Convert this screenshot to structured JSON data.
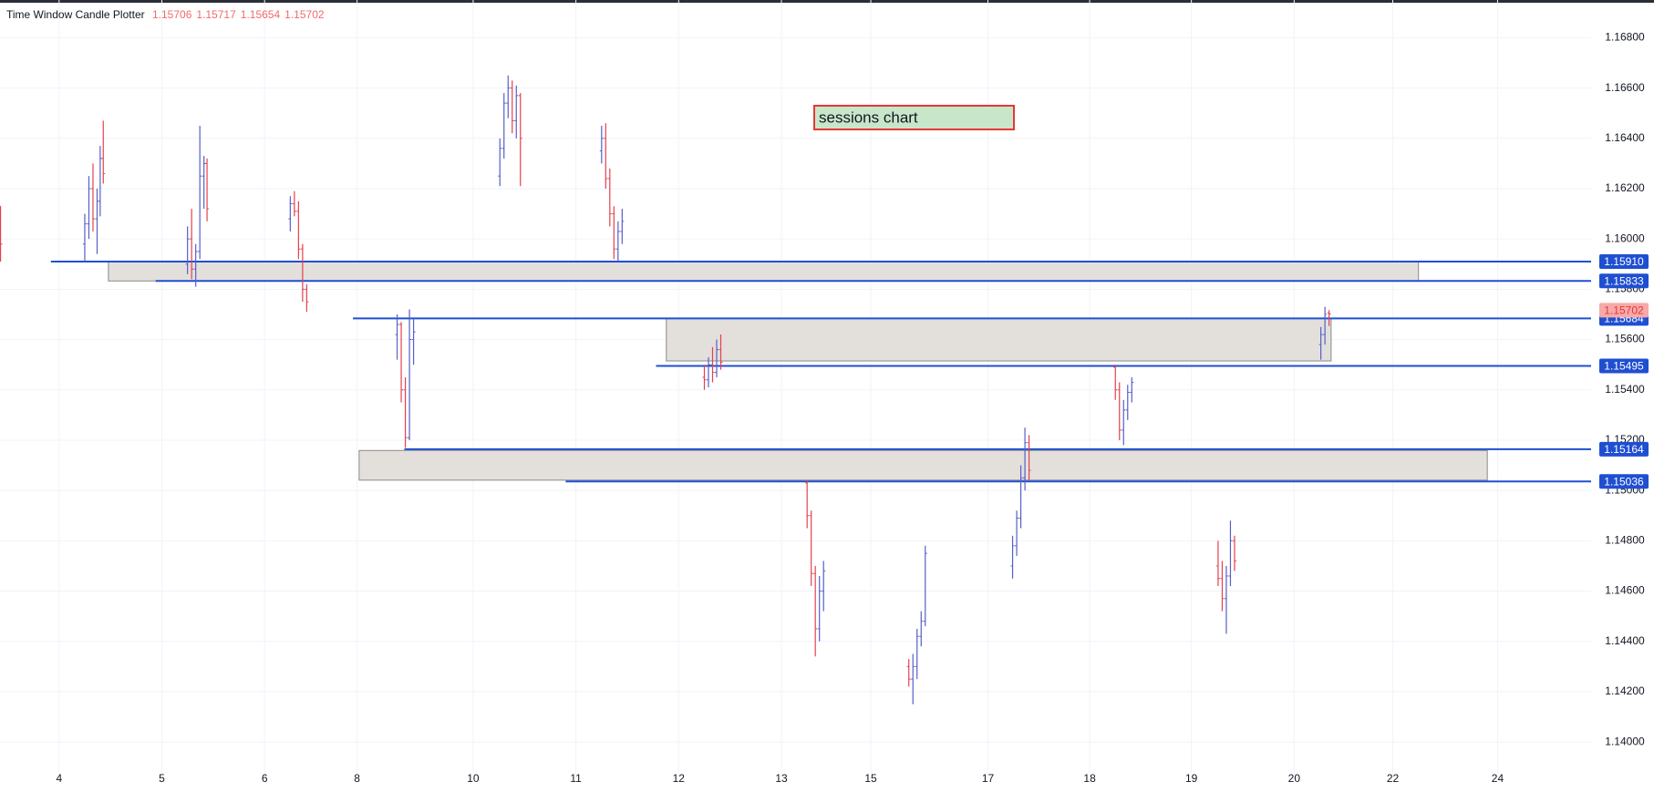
{
  "chart_data": {
    "type": "candlestick",
    "title": "Time Window Candle Plotter",
    "annotation": "sessions chart",
    "up_color": "#5560c8",
    "down_color": "#e4414d",
    "level_color": "#1f4fd1",
    "box_color": "#e3e0dc",
    "grid": true,
    "xlim": [
      -0.575,
      14.91
    ],
    "xticks": [
      {
        "value": 0,
        "label": "4"
      },
      {
        "value": 1,
        "label": "5"
      },
      {
        "value": 2,
        "label": "6"
      },
      {
        "value": 2.9,
        "label": "8"
      },
      {
        "value": 4.03,
        "label": "10"
      },
      {
        "value": 5.03,
        "label": "11"
      },
      {
        "value": 6.03,
        "label": "12"
      },
      {
        "value": 7.03,
        "label": "13"
      },
      {
        "value": 7.9,
        "label": "15"
      },
      {
        "value": 9.04,
        "label": "17"
      },
      {
        "value": 10.03,
        "label": "18"
      },
      {
        "value": 11.02,
        "label": "19"
      },
      {
        "value": 12.02,
        "label": "20"
      },
      {
        "value": 12.98,
        "label": "22"
      },
      {
        "value": 14,
        "label": "24"
      }
    ],
    "ylim": [
      1.1387,
      1.1695
    ],
    "yticks": [
      {
        "value": 1.168,
        "label": "1.16800"
      },
      {
        "value": 1.166,
        "label": "1.16600"
      },
      {
        "value": 1.164,
        "label": "1.16400"
      },
      {
        "value": 1.162,
        "label": "1.16200"
      },
      {
        "value": 1.16,
        "label": "1.16000"
      },
      {
        "value": 1.158,
        "label": "1.15800"
      },
      {
        "value": 1.156,
        "label": "1.15600"
      },
      {
        "value": 1.154,
        "label": "1.15400"
      },
      {
        "value": 1.152,
        "label": "1.15200"
      },
      {
        "value": 1.15,
        "label": "1.15000"
      },
      {
        "value": 1.148,
        "label": "1.14800"
      },
      {
        "value": 1.146,
        "label": "1.14600"
      },
      {
        "value": 1.144,
        "label": "1.14400"
      },
      {
        "value": 1.142,
        "label": "1.14200"
      },
      {
        "value": 1.14,
        "label": "1.14000"
      }
    ],
    "boxes": [
      {
        "x0": 0.48,
        "x1": 13.23,
        "top": 1.1591,
        "bottom": 1.15833
      },
      {
        "x0": 5.91,
        "x1": 12.38,
        "top": 1.15684,
        "bottom": 1.15515
      },
      {
        "x0": 2.92,
        "x1": 13.9,
        "top": 1.15159,
        "bottom": 1.15041
      }
    ],
    "levels": [
      {
        "value": 1.1591,
        "label": "1.15910",
        "from": -0.08
      },
      {
        "value": 1.15833,
        "label": "1.15833",
        "from": 0.94
      },
      {
        "value": 1.15684,
        "label": "1.15684",
        "from": 2.86
      },
      {
        "value": 1.15495,
        "label": "1.15495",
        "from": 5.81
      },
      {
        "value": 1.15164,
        "label": "1.15164",
        "from": 3.36
      },
      {
        "value": 1.15036,
        "label": "1.15036",
        "from": 4.93
      }
    ],
    "candles": [
      [
        -0.57,
        1.1613,
        1.1613,
        1.1591,
        1.1598
      ],
      [
        0.25,
        1.1598,
        1.161,
        1.1591,
        1.1606
      ],
      [
        0.29,
        1.1606,
        1.1625,
        1.16,
        1.162
      ],
      [
        0.33,
        1.162,
        1.163,
        1.1603,
        1.1608
      ],
      [
        0.37,
        1.1608,
        1.162,
        1.1594,
        1.1615
      ],
      [
        0.4,
        1.1615,
        1.1637,
        1.1609,
        1.1632
      ],
      [
        0.43,
        1.1632,
        1.1647,
        1.1622,
        1.1626
      ],
      [
        1.25,
        1.159,
        1.1605,
        1.1586,
        1.16
      ],
      [
        1.29,
        1.16,
        1.1612,
        1.1584,
        1.1588
      ],
      [
        1.33,
        1.1588,
        1.1598,
        1.1581,
        1.1595
      ],
      [
        1.37,
        1.1595,
        1.1645,
        1.1592,
        1.1625
      ],
      [
        1.41,
        1.1625,
        1.1633,
        1.1612,
        1.163
      ],
      [
        1.44,
        1.163,
        1.1632,
        1.1607,
        1.1612
      ],
      [
        2.25,
        1.1608,
        1.1617,
        1.1603,
        1.1614
      ],
      [
        2.29,
        1.1614,
        1.1619,
        1.1609,
        1.1611
      ],
      [
        2.33,
        1.1611,
        1.1615,
        1.1592,
        1.1596
      ],
      [
        2.37,
        1.1596,
        1.1598,
        1.1575,
        1.158
      ],
      [
        2.41,
        1.158,
        1.1582,
        1.1571,
        1.1575
      ],
      [
        3.29,
        1.1562,
        1.157,
        1.1552,
        1.1566
      ],
      [
        3.33,
        1.1566,
        1.1567,
        1.1535,
        1.154
      ],
      [
        3.37,
        1.154,
        1.1545,
        1.1517,
        1.1521
      ],
      [
        3.41,
        1.1521,
        1.1572,
        1.152,
        1.156
      ],
      [
        3.45,
        1.156,
        1.1568,
        1.155,
        1.1563
      ],
      [
        4.29,
        1.1625,
        1.164,
        1.1621,
        1.1636
      ],
      [
        4.33,
        1.1636,
        1.1658,
        1.1632,
        1.1654
      ],
      [
        4.37,
        1.1654,
        1.1665,
        1.1648,
        1.166
      ],
      [
        4.41,
        1.166,
        1.1663,
        1.1642,
        1.1647
      ],
      [
        4.45,
        1.1647,
        1.1661,
        1.164,
        1.1657
      ],
      [
        4.49,
        1.1657,
        1.1658,
        1.1621,
        1.164
      ],
      [
        5.28,
        1.1635,
        1.1645,
        1.163,
        1.164
      ],
      [
        5.32,
        1.164,
        1.1646,
        1.162,
        1.1624
      ],
      [
        5.36,
        1.1624,
        1.1628,
        1.1605,
        1.161
      ],
      [
        5.4,
        1.161,
        1.1613,
        1.1592,
        1.1596
      ],
      [
        5.44,
        1.1596,
        1.1607,
        1.1591,
        1.1603
      ],
      [
        5.48,
        1.1603,
        1.1612,
        1.1598,
        1.1607
      ],
      [
        6.28,
        1.1545,
        1.155,
        1.154,
        1.1544
      ],
      [
        6.32,
        1.1544,
        1.1553,
        1.1541,
        1.155
      ],
      [
        6.36,
        1.155,
        1.1557,
        1.1543,
        1.1547
      ],
      [
        6.4,
        1.1547,
        1.156,
        1.1545,
        1.1556
      ],
      [
        6.44,
        1.1556,
        1.1562,
        1.1548,
        1.1551
      ],
      [
        7.28,
        1.1503,
        1.1504,
        1.1485,
        1.149
      ],
      [
        7.32,
        1.149,
        1.1492,
        1.1462,
        1.1467
      ],
      [
        7.36,
        1.1467,
        1.147,
        1.1434,
        1.1445
      ],
      [
        7.4,
        1.1445,
        1.1466,
        1.144,
        1.146
      ],
      [
        7.44,
        1.146,
        1.1472,
        1.1452,
        1.1468
      ],
      [
        8.27,
        1.143,
        1.1433,
        1.1422,
        1.1425
      ],
      [
        8.31,
        1.1425,
        1.1435,
        1.1415,
        1.143
      ],
      [
        8.35,
        1.143,
        1.1445,
        1.1425,
        1.1442
      ],
      [
        8.39,
        1.1442,
        1.1452,
        1.1438,
        1.1448
      ],
      [
        8.43,
        1.1448,
        1.1478,
        1.1446,
        1.1475
      ],
      [
        9.28,
        1.147,
        1.1482,
        1.1465,
        1.1478
      ],
      [
        9.32,
        1.1478,
        1.1492,
        1.1474,
        1.1489
      ],
      [
        9.36,
        1.1489,
        1.151,
        1.1485,
        1.1505
      ],
      [
        9.4,
        1.1505,
        1.1525,
        1.15,
        1.1519
      ],
      [
        9.44,
        1.1519,
        1.1522,
        1.1504,
        1.1508
      ],
      [
        10.28,
        1.1549,
        1.155,
        1.1536,
        1.154
      ],
      [
        10.32,
        1.154,
        1.1543,
        1.152,
        1.1524
      ],
      [
        10.36,
        1.1524,
        1.1536,
        1.1518,
        1.1532
      ],
      [
        10.4,
        1.1532,
        1.1542,
        1.1528,
        1.1539
      ],
      [
        10.44,
        1.1539,
        1.1545,
        1.1535,
        1.1543
      ],
      [
        11.28,
        1.147,
        1.148,
        1.1462,
        1.1465
      ],
      [
        11.32,
        1.1465,
        1.1472,
        1.1452,
        1.1457
      ],
      [
        11.36,
        1.1457,
        1.147,
        1.1443,
        1.1466
      ],
      [
        11.4,
        1.1466,
        1.1488,
        1.1462,
        1.148
      ],
      [
        11.44,
        1.148,
        1.1482,
        1.1468,
        1.1472
      ],
      [
        12.28,
        1.1558,
        1.1565,
        1.1552,
        1.1562
      ],
      [
        12.32,
        1.1562,
        1.1573,
        1.1558,
        1.157
      ],
      [
        12.36,
        1.15706,
        1.15717,
        1.15654,
        1.15702
      ]
    ]
  }
}
